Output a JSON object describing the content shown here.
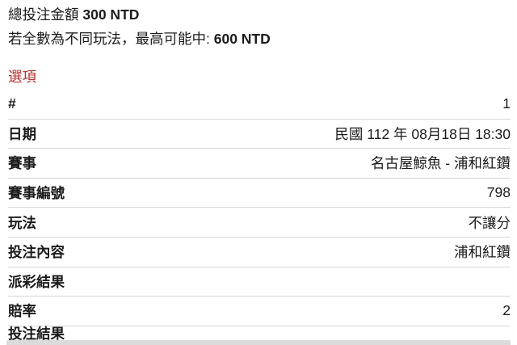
{
  "summary": {
    "total_line": {
      "label": "總投注金額 ",
      "amount": "300 NTD"
    },
    "max_win_line": {
      "text": "若全數為不同玩法，最高可能中: ",
      "amount": "600 NTD"
    }
  },
  "options_title": "選項",
  "table": {
    "rows": [
      {
        "label": "#",
        "value": "1"
      },
      {
        "label": "日期",
        "value": "民國 112 年 08月18日 18:30"
      },
      {
        "label": "賽事",
        "value": "名古屋鯨魚 - 浦和紅鑽"
      },
      {
        "label": "賽事編號",
        "value": "798"
      },
      {
        "label": "玩法",
        "value": "不讓分"
      },
      {
        "label": "投注內容",
        "value": ""
      },
      {
        "label": "派彩結果",
        "value": ""
      },
      {
        "label": "賠率",
        "value": "2"
      },
      {
        "label": "投注結果",
        "value": ""
      }
    ]
  },
  "colors": {
    "accent_red": "#b5302a",
    "divider": "#d6d6d6",
    "bottom_bar": "#dbdbdb"
  }
}
